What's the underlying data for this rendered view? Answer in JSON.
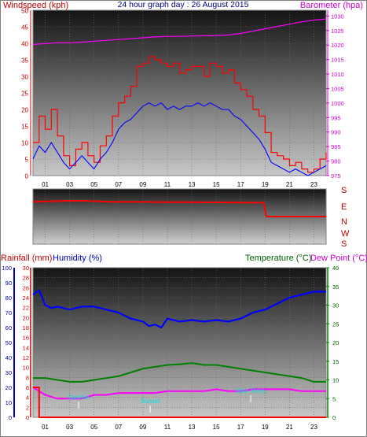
{
  "chart_data": [
    {
      "type": "line",
      "title": "24 hour graph day : 26 August 2015",
      "left_axis_label": "Windspeed (kph)",
      "right_axis_label": "Barometer (hpa)",
      "x_ticks": [
        "01",
        "03",
        "05",
        "07",
        "09",
        "11",
        "13",
        "15",
        "17",
        "19",
        "21",
        "23"
      ],
      "y_left_ticks": [
        "0",
        "5",
        "10",
        "15",
        "20",
        "25",
        "30",
        "35",
        "40",
        "45",
        "50"
      ],
      "y_left_range": [
        0,
        50
      ],
      "y_right_ticks": [
        "975",
        "980",
        "985",
        "990",
        "995",
        "1000",
        "1005",
        "1010",
        "1015",
        "1020",
        "1025",
        "1030"
      ],
      "y_right_range": [
        975,
        1032
      ],
      "series": [
        {
          "color": "#ff0000",
          "x": [
            0,
            0.5,
            1,
            1.5,
            2,
            2.5,
            3,
            3.5,
            4,
            4.5,
            5,
            5.5,
            6,
            6.5,
            7,
            7.5,
            8,
            8.5,
            9,
            9.5,
            10,
            10.5,
            11,
            11.5,
            12,
            12.5,
            13,
            13.5,
            14,
            14.5,
            15,
            15.5,
            16,
            16.5,
            17,
            17.5,
            18,
            18.5,
            19,
            19.5,
            20,
            20.5,
            21,
            21.5,
            22,
            22.5,
            23,
            23.5,
            24
          ],
          "values": [
            10,
            18,
            14,
            20,
            12,
            6,
            3,
            8,
            10,
            6,
            4,
            9,
            12,
            18,
            22,
            24,
            27,
            33,
            34,
            36,
            35,
            34,
            33,
            34,
            31,
            32,
            33,
            33,
            30,
            34,
            33,
            31,
            32,
            28,
            26,
            24,
            20,
            18,
            13,
            7,
            6,
            5,
            3,
            4,
            2,
            1,
            2,
            5,
            7
          ]
        },
        {
          "color": "#0000ff",
          "x": [
            0,
            0.5,
            1,
            1.5,
            2,
            2.5,
            3,
            3.5,
            4,
            4.5,
            5,
            5.5,
            6,
            6.5,
            7,
            7.5,
            8,
            8.5,
            9,
            9.5,
            10,
            10.5,
            11,
            11.5,
            12,
            12.5,
            13,
            13.5,
            14,
            14.5,
            15,
            15.5,
            16,
            16.5,
            17,
            17.5,
            18,
            18.5,
            19,
            19.5,
            20,
            20.5,
            21,
            21.5,
            22,
            22.5,
            23,
            23.5,
            24
          ],
          "values": [
            5,
            9,
            7,
            10,
            7,
            4,
            2,
            4,
            6,
            4,
            2,
            5,
            7,
            10,
            14,
            16,
            17,
            19,
            21,
            22,
            21,
            22,
            20,
            21,
            20,
            21,
            21,
            22,
            21,
            22,
            21,
            20,
            20,
            18,
            17,
            15,
            13,
            11,
            8,
            4,
            3,
            2,
            1,
            2,
            1,
            0,
            1,
            2,
            3
          ]
        },
        {
          "color": "#ff00ff",
          "x": [
            0,
            1,
            2,
            3,
            4,
            5,
            6,
            7,
            8,
            9,
            10,
            11,
            12,
            13,
            14,
            15,
            16,
            17,
            18,
            19,
            20,
            21,
            22,
            23,
            24
          ],
          "values": [
            1020.2,
            1020.5,
            1020.8,
            1020.8,
            1021,
            1021.3,
            1021.6,
            1021.9,
            1022.2,
            1022.5,
            1022.8,
            1023,
            1023,
            1023.1,
            1023.2,
            1023.3,
            1023.5,
            1024,
            1024.8,
            1025.6,
            1026.4,
            1027.2,
            1028,
            1028.6,
            1029
          ]
        }
      ]
    },
    {
      "type": "line",
      "y_ticks": [
        "S",
        "E",
        "N",
        "W",
        "S"
      ],
      "y_range": [
        0,
        360
      ],
      "series": [
        {
          "color": "#ff0000",
          "x": [
            0,
            1,
            2,
            3,
            4,
            5,
            6,
            7,
            8,
            9,
            10,
            11,
            12,
            13,
            14,
            15,
            16,
            17,
            18,
            18.9,
            19.1,
            20,
            21,
            22,
            23,
            24
          ],
          "values": [
            290,
            292,
            294,
            296,
            296,
            294,
            290,
            288,
            288,
            288,
            287,
            286,
            286,
            286,
            285,
            285,
            284,
            283,
            282,
            282,
            180,
            180,
            180,
            180,
            180,
            180
          ]
        }
      ]
    },
    {
      "type": "line",
      "left_axis_label_1": "Rainfall (mm)",
      "left_axis_label_2": "Humidity (%)",
      "right_axis_label_1": "Temperature (°C)",
      "right_axis_label_2": "Dew Point (°C)",
      "x_ticks": [
        "01",
        "03",
        "05",
        "07",
        "09",
        "11",
        "13",
        "15",
        "17",
        "19",
        "21",
        "23"
      ],
      "humidity_ticks": [
        "0",
        "10",
        "20",
        "30",
        "40",
        "50",
        "60",
        "70",
        "80",
        "90",
        "100"
      ],
      "humidity_range": [
        0,
        100
      ],
      "rain_ticks": [
        "0",
        "2",
        "4",
        "6",
        "8",
        "10",
        "12",
        "14",
        "16",
        "18",
        "20",
        "22",
        "24",
        "26",
        "28",
        "30"
      ],
      "rain_range": [
        0,
        30
      ],
      "temp_ticks": [
        "0",
        "5",
        "10",
        "15",
        "20",
        "25",
        "30",
        "35",
        "40"
      ],
      "temp_range": [
        0,
        40
      ],
      "annotations": [
        "Sunrise",
        "Sunset",
        "Max Temp"
      ],
      "series": [
        {
          "name": "Humidity (%)",
          "color": "#0000ff",
          "x": [
            0,
            0.5,
            1,
            1.5,
            2,
            3,
            4,
            5,
            6,
            7,
            8,
            9,
            9.5,
            10,
            10.5,
            11,
            12,
            13,
            14,
            15,
            16,
            17,
            18,
            19,
            20,
            21,
            22,
            23,
            24
          ],
          "values": [
            82,
            85,
            75,
            73,
            74,
            72,
            74,
            74,
            72,
            70,
            66,
            64,
            61,
            62,
            60,
            66,
            64,
            65,
            64,
            65,
            64,
            66,
            70,
            72,
            76,
            80,
            82,
            84,
            84
          ]
        },
        {
          "name": "Temperature (°C)",
          "color": "#008000",
          "x": [
            0,
            1,
            2,
            3,
            4,
            5,
            6,
            7,
            8,
            9,
            10,
            11,
            12,
            13,
            14,
            15,
            16,
            17,
            18,
            19,
            20,
            21,
            22,
            23,
            24
          ],
          "values": [
            10.5,
            10.5,
            10,
            9.5,
            9.5,
            10,
            10.5,
            11,
            12,
            13,
            13.5,
            14,
            14.2,
            14.5,
            14,
            14,
            13.5,
            13,
            12.5,
            12,
            11.5,
            11,
            10.5,
            9.5,
            9.5
          ]
        },
        {
          "name": "Dew Point (°C)",
          "color": "#ff00ff",
          "x": [
            0,
            1,
            2,
            3,
            4,
            5,
            6,
            7,
            8,
            9,
            10,
            11,
            12,
            13,
            14,
            15,
            16,
            17,
            18,
            19,
            20,
            21,
            22,
            23,
            24
          ],
          "values": [
            8,
            6,
            5,
            5,
            5,
            6,
            6,
            6.5,
            6.5,
            6.5,
            6.5,
            7,
            7,
            7,
            7,
            7.5,
            7,
            7,
            7.5,
            7.5,
            7.5,
            7.5,
            7,
            7,
            7
          ]
        },
        {
          "name": "Rainfall (mm)",
          "color": "#ff0000",
          "x": [
            0,
            0.4,
            0.5,
            24
          ],
          "values": [
            6,
            6,
            0,
            0
          ]
        }
      ]
    }
  ]
}
